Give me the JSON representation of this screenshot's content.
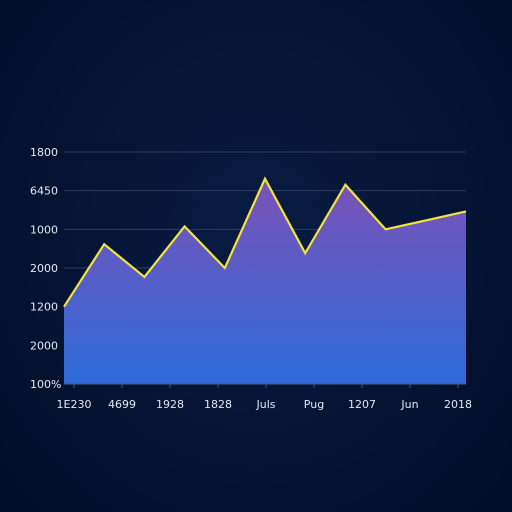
{
  "chart_data": {
    "type": "area",
    "title": "",
    "xlabel": "",
    "ylabel": "",
    "y_tick_labels": [
      "1800",
      "6450",
      "1000",
      "2000",
      "1200",
      "2000",
      "100%"
    ],
    "x_tick_labels": [
      "1E230",
      "4699",
      "1928",
      "1828",
      "Juls",
      "Pug",
      "1207",
      "Jun",
      "2018"
    ],
    "series": [
      {
        "values": [
          2.6,
          4.7,
          3.6,
          5.3,
          3.9,
          6.9,
          4.4,
          6.7,
          5.2,
          5.5,
          5.8
        ]
      }
    ],
    "ylim": [
      0,
      7.8
    ],
    "grid": true,
    "legend": "none",
    "colors": {
      "line": "#f2e43a",
      "fill_top": "#7a52b8",
      "fill_bottom": "#2e6bd9",
      "background": "#03112e",
      "grid": "#2c3c63"
    }
  }
}
